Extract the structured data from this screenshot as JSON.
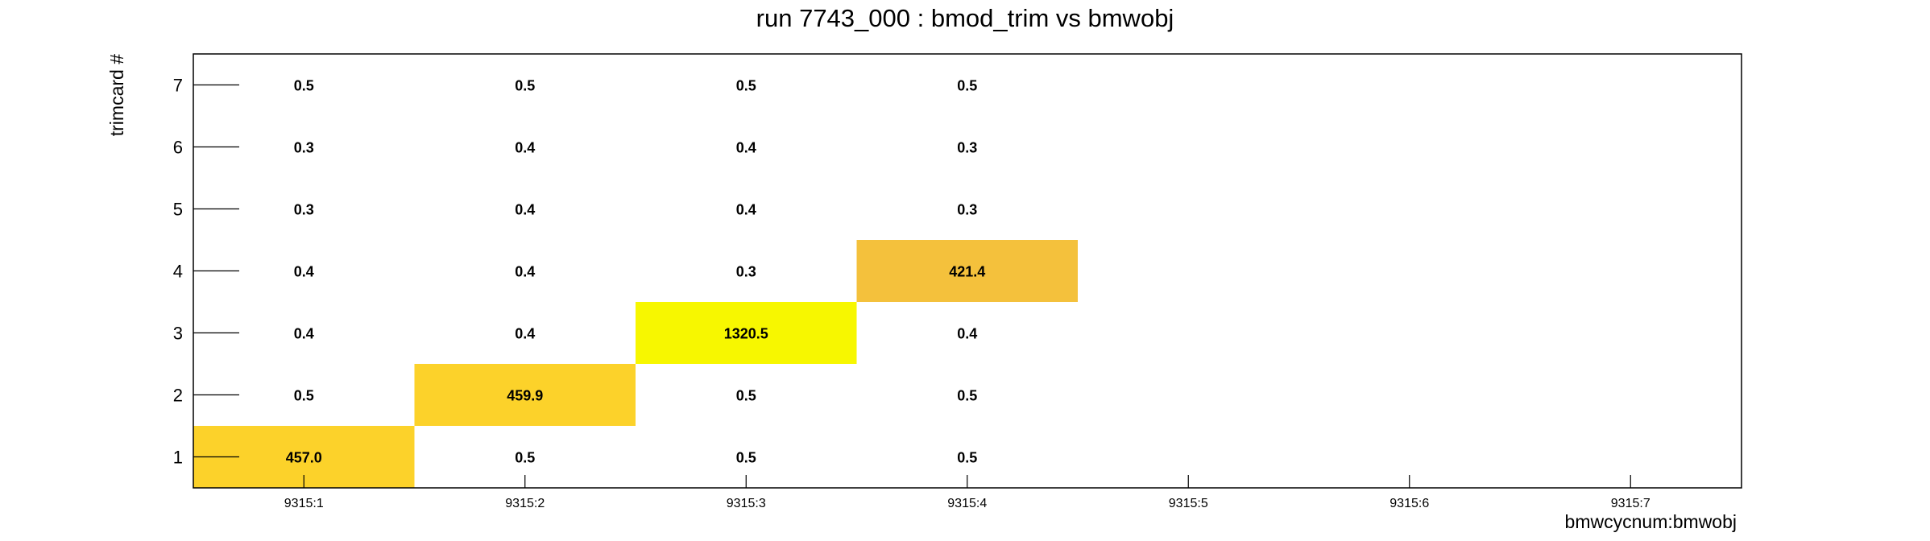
{
  "chart_data": {
    "type": "heatmap",
    "title": "run 7743_000 : bmod_trim vs bmwobj",
    "xlabel": "bmwcycnum:bmwobj",
    "ylabel": "trimcard #",
    "x_categories": [
      "9315:1",
      "9315:2",
      "9315:3",
      "9315:4",
      "9315:5",
      "9315:6",
      "9315:7"
    ],
    "y_categories": [
      "1",
      "2",
      "3",
      "4",
      "5",
      "6",
      "7"
    ],
    "cells": [
      {
        "x": "9315:1",
        "y": "1",
        "value": 457.0,
        "label": "457.0"
      },
      {
        "x": "9315:1",
        "y": "2",
        "value": 0.5,
        "label": "0.5"
      },
      {
        "x": "9315:1",
        "y": "3",
        "value": 0.4,
        "label": "0.4"
      },
      {
        "x": "9315:1",
        "y": "4",
        "value": 0.4,
        "label": "0.4"
      },
      {
        "x": "9315:1",
        "y": "5",
        "value": 0.3,
        "label": "0.3"
      },
      {
        "x": "9315:1",
        "y": "6",
        "value": 0.3,
        "label": "0.3"
      },
      {
        "x": "9315:1",
        "y": "7",
        "value": 0.5,
        "label": "0.5"
      },
      {
        "x": "9315:2",
        "y": "1",
        "value": 0.5,
        "label": "0.5"
      },
      {
        "x": "9315:2",
        "y": "2",
        "value": 459.9,
        "label": "459.9"
      },
      {
        "x": "9315:2",
        "y": "3",
        "value": 0.4,
        "label": "0.4"
      },
      {
        "x": "9315:2",
        "y": "4",
        "value": 0.4,
        "label": "0.4"
      },
      {
        "x": "9315:2",
        "y": "5",
        "value": 0.4,
        "label": "0.4"
      },
      {
        "x": "9315:2",
        "y": "6",
        "value": 0.4,
        "label": "0.4"
      },
      {
        "x": "9315:2",
        "y": "7",
        "value": 0.5,
        "label": "0.5"
      },
      {
        "x": "9315:3",
        "y": "1",
        "value": 0.5,
        "label": "0.5"
      },
      {
        "x": "9315:3",
        "y": "2",
        "value": 0.5,
        "label": "0.5"
      },
      {
        "x": "9315:3",
        "y": "3",
        "value": 1320.5,
        "label": "1320.5"
      },
      {
        "x": "9315:3",
        "y": "4",
        "value": 0.3,
        "label": "0.3"
      },
      {
        "x": "9315:3",
        "y": "5",
        "value": 0.4,
        "label": "0.4"
      },
      {
        "x": "9315:3",
        "y": "6",
        "value": 0.4,
        "label": "0.4"
      },
      {
        "x": "9315:3",
        "y": "7",
        "value": 0.5,
        "label": "0.5"
      },
      {
        "x": "9315:4",
        "y": "1",
        "value": 0.5,
        "label": "0.5"
      },
      {
        "x": "9315:4",
        "y": "2",
        "value": 0.5,
        "label": "0.5"
      },
      {
        "x": "9315:4",
        "y": "3",
        "value": 0.4,
        "label": "0.4"
      },
      {
        "x": "9315:4",
        "y": "4",
        "value": 421.4,
        "label": "421.4"
      },
      {
        "x": "9315:4",
        "y": "5",
        "value": 0.3,
        "label": "0.3"
      },
      {
        "x": "9315:4",
        "y": "6",
        "value": 0.3,
        "label": "0.3"
      },
      {
        "x": "9315:4",
        "y": "7",
        "value": 0.5,
        "label": "0.5"
      }
    ],
    "color_threshold": 100,
    "colors": {
      "high": "#f7f700",
      "mid_high": "#fcd22a",
      "mid": "#f4c13c",
      "low": "#ffffff",
      "frame": "#000000"
    },
    "grid": false,
    "legend": "none"
  }
}
